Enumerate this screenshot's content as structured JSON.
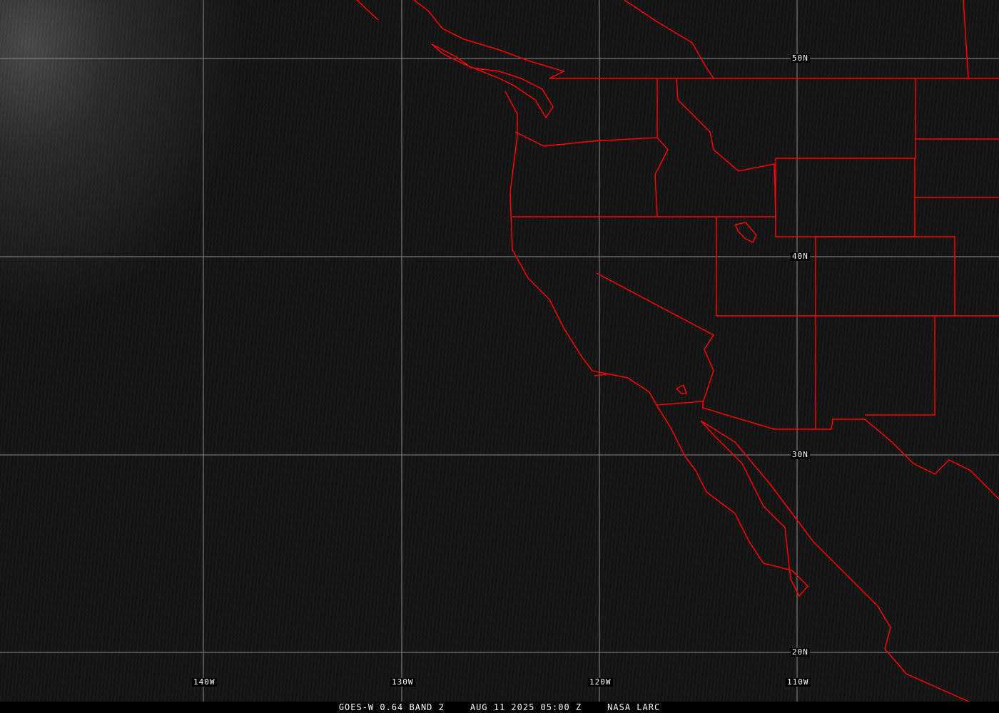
{
  "image": {
    "satellite": "GOES-W",
    "colors": {
      "borders": "#ff0000",
      "grid": "#8a8a8a",
      "background": "#111111"
    }
  },
  "grid": {
    "longitude_labels": [
      "140W",
      "130W",
      "120W",
      "110W"
    ],
    "latitude_labels": [
      "50N",
      "40N",
      "30N",
      "20N"
    ]
  },
  "caption": {
    "product": "GOES-W 0.64 BAND 2",
    "datetime": "AUG 11 2025 05:00 Z",
    "source": "NASA LARC"
  }
}
